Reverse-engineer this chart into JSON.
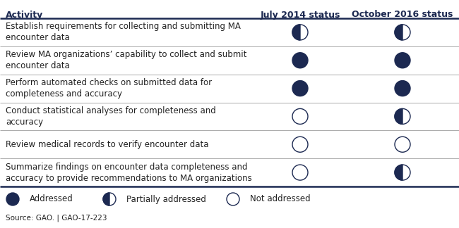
{
  "header": [
    "Activity",
    "July 2014 status",
    "October 2016 status"
  ],
  "rows": [
    {
      "activity": "Establish requirements for collecting and submitting MA\nencounter data",
      "july2014": "partial",
      "oct2016": "partial"
    },
    {
      "activity": "Review MA organizations’ capability to collect and submit\nencounter data",
      "july2014": "addressed",
      "oct2016": "addressed"
    },
    {
      "activity": "Perform automated checks on submitted data for\ncompleteness and accuracy",
      "july2014": "addressed",
      "oct2016": "addressed"
    },
    {
      "activity": "Conduct statistical analyses for completeness and\naccuracy",
      "july2014": "not",
      "oct2016": "partial"
    },
    {
      "activity": "Review medical records to verify encounter data",
      "july2014": "not",
      "oct2016": "not"
    },
    {
      "activity": "Summarize findings on encounter data completeness and\naccuracy to provide recommendations to MA organizations",
      "july2014": "not",
      "oct2016": "partial"
    }
  ],
  "legend": [
    {
      "label": "Addressed",
      "status": "addressed"
    },
    {
      "label": "Partially addressed",
      "status": "partial"
    },
    {
      "label": "Not addressed",
      "status": "not"
    }
  ],
  "source_text": "Source: GAO. | GAO-17-223",
  "dark_color": "#1c2951",
  "header_color": "#1c2951",
  "line_color": "#aaaaaa",
  "thick_line_color": "#1c2951",
  "bg_color": "#ffffff",
  "text_color": "#222222",
  "header_fontsize": 9,
  "body_fontsize": 8.5
}
